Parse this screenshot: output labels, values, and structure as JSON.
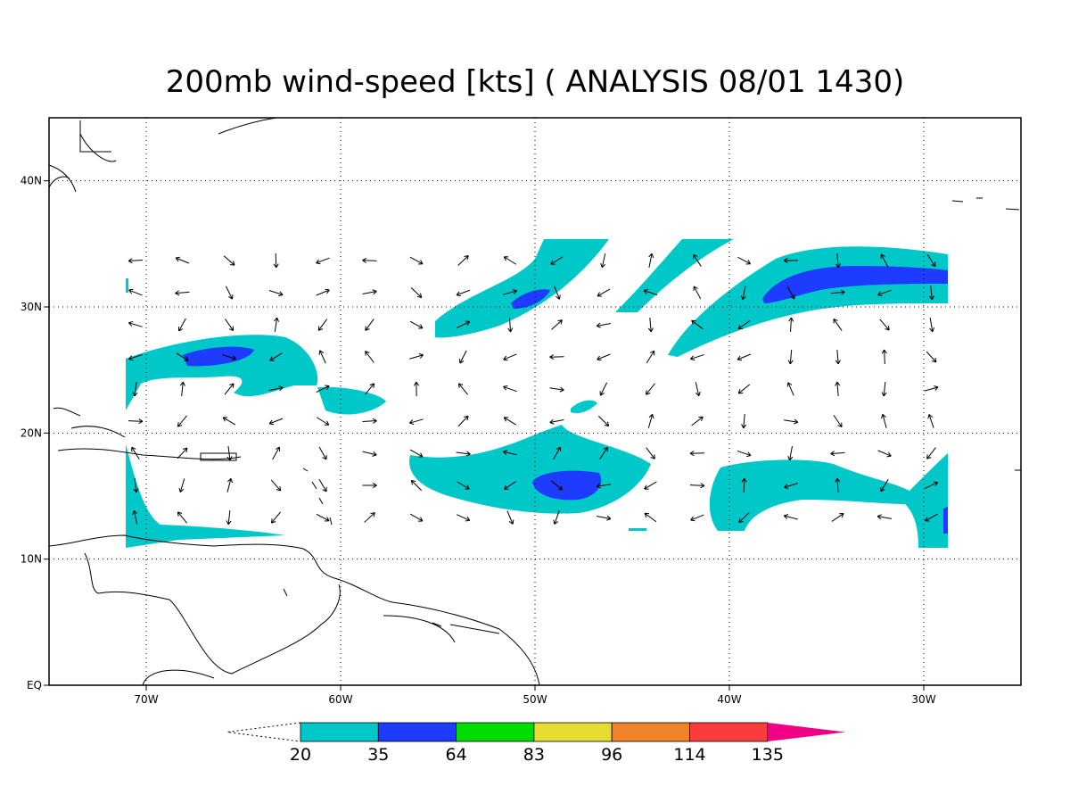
{
  "map": {
    "title": "200mb wind-speed [kts] ( ANALYSIS 08/01 1430)",
    "lonlim": [
      -75,
      -25
    ],
    "latlim": [
      0,
      45
    ],
    "lon_ticks": [
      {
        "value": -70,
        "label": "70W"
      },
      {
        "value": -60,
        "label": "60W"
      },
      {
        "value": -50,
        "label": "50W"
      },
      {
        "value": -40,
        "label": "40W"
      },
      {
        "value": -30,
        "label": "30W"
      }
    ],
    "lat_ticks": [
      {
        "value": 40,
        "label": "40N"
      },
      {
        "value": 30,
        "label": "30N"
      },
      {
        "value": 20,
        "label": "20N"
      },
      {
        "value": 10,
        "label": "10N"
      },
      {
        "value": 0,
        "label": "EQ"
      }
    ],
    "grid": true,
    "colorbar": {
      "levels": [
        20,
        35,
        64,
        83,
        96,
        114,
        135
      ],
      "colors": [
        "#00c8c8",
        "#1e3cff",
        "#00dc00",
        "#e6dc32",
        "#f08228",
        "#fa3c3c",
        "#f00082"
      ]
    }
  }
}
